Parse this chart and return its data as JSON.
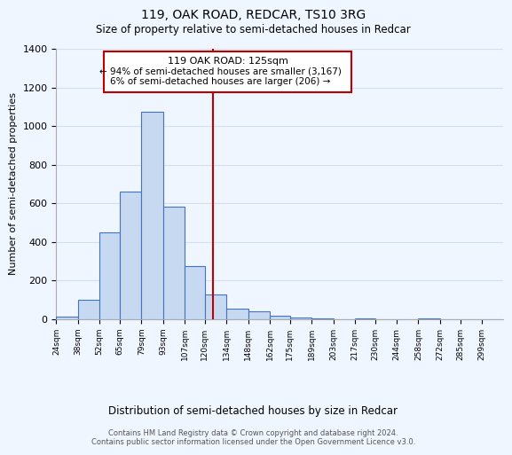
{
  "title": "119, OAK ROAD, REDCAR, TS10 3RG",
  "subtitle": "Size of property relative to semi-detached houses in Redcar",
  "xlabel": "Distribution of semi-detached houses by size in Redcar",
  "ylabel": "Number of semi-detached properties",
  "bar_edges": [
    24,
    38,
    52,
    65,
    79,
    93,
    107,
    120,
    134,
    148,
    162,
    175,
    189,
    203,
    217,
    230,
    244,
    258,
    272,
    285,
    299
  ],
  "bar_heights": [
    15,
    100,
    450,
    660,
    1075,
    585,
    275,
    130,
    55,
    40,
    20,
    10,
    5,
    0,
    5,
    0,
    0,
    5,
    0,
    0,
    0
  ],
  "bar_color": "#c6d9f0",
  "bar_edge_color": "#4472c4",
  "property_line_x": 125,
  "property_label": "119 OAK ROAD: 125sqm",
  "pct_smaller": "94%",
  "n_smaller": "3,167",
  "pct_larger": "6%",
  "n_larger": "206",
  "annotation_box_color": "#ffffff",
  "annotation_box_edge": "#c00000",
  "tick_labels": [
    "24sqm",
    "38sqm",
    "52sqm",
    "65sqm",
    "79sqm",
    "93sqm",
    "107sqm",
    "120sqm",
    "134sqm",
    "148sqm",
    "162sqm",
    "175sqm",
    "189sqm",
    "203sqm",
    "217sqm",
    "230sqm",
    "244sqm",
    "258sqm",
    "272sqm",
    "285sqm",
    "299sqm"
  ],
  "ylim": [
    0,
    1400
  ],
  "yticks": [
    0,
    200,
    400,
    600,
    800,
    1000,
    1200,
    1400
  ],
  "footer_line1": "Contains HM Land Registry data © Crown copyright and database right 2024.",
  "footer_line2": "Contains public sector information licensed under the Open Government Licence v3.0.",
  "grid_color": "#d0e0f0",
  "background_color": "#f0f6ff"
}
